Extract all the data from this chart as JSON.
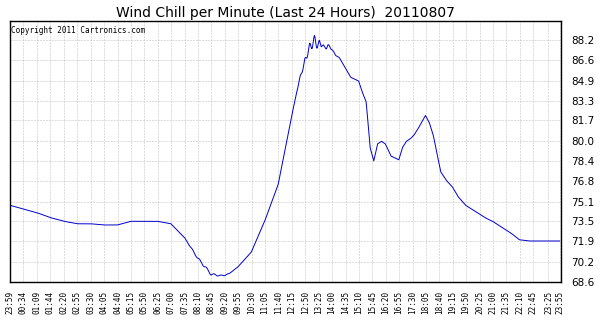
{
  "title": "Wind Chill per Minute (Last 24 Hours)  20110807",
  "copyright_text": "Copyright 2011 Cartronics.com",
  "line_color": "#0000cc",
  "background_color": "#ffffff",
  "grid_color": "#aaaaaa",
  "ylim": [
    68.6,
    89.8
  ],
  "yticks": [
    68.6,
    70.2,
    71.9,
    73.5,
    75.1,
    76.8,
    78.4,
    80.0,
    81.7,
    83.3,
    84.9,
    86.6,
    88.2
  ],
  "xlabel_fontsize": 5.5,
  "ylabel_fontsize": 7.5,
  "title_fontsize": 10,
  "x_labels": [
    "23:59",
    "00:34",
    "01:09",
    "01:44",
    "02:20",
    "02:55",
    "03:30",
    "04:05",
    "04:40",
    "05:15",
    "05:50",
    "06:25",
    "07:00",
    "07:35",
    "08:10",
    "08:45",
    "09:20",
    "09:55",
    "10:30",
    "11:05",
    "11:40",
    "12:15",
    "12:50",
    "13:25",
    "14:00",
    "14:35",
    "15:10",
    "15:45",
    "16:20",
    "16:55",
    "17:30",
    "18:05",
    "18:40",
    "19:15",
    "19:50",
    "20:25",
    "21:00",
    "21:35",
    "22:10",
    "22:45",
    "23:25",
    "23:55"
  ],
  "key_points": [
    [
      0.0,
      74.8
    ],
    [
      0.58,
      74.5
    ],
    [
      1.17,
      74.2
    ],
    [
      1.75,
      73.8
    ],
    [
      2.35,
      73.5
    ],
    [
      2.92,
      73.3
    ],
    [
      3.5,
      73.3
    ],
    [
      4.08,
      73.2
    ],
    [
      4.67,
      73.2
    ],
    [
      5.25,
      73.5
    ],
    [
      5.83,
      73.5
    ],
    [
      6.42,
      73.5
    ],
    [
      7.0,
      73.3
    ],
    [
      7.58,
      72.2
    ],
    [
      8.17,
      70.5
    ],
    [
      8.75,
      69.2
    ],
    [
      9.08,
      69.1
    ],
    [
      9.33,
      69.1
    ],
    [
      9.58,
      69.3
    ],
    [
      9.92,
      69.8
    ],
    [
      10.5,
      71.0
    ],
    [
      11.08,
      73.5
    ],
    [
      11.67,
      76.5
    ],
    [
      12.25,
      82.0
    ],
    [
      12.58,
      84.9
    ],
    [
      12.83,
      86.5
    ],
    [
      13.0,
      87.5
    ],
    [
      13.17,
      88.0
    ],
    [
      13.25,
      88.2
    ],
    [
      13.42,
      87.8
    ],
    [
      13.58,
      88.0
    ],
    [
      13.67,
      87.5
    ],
    [
      13.83,
      87.8
    ],
    [
      14.0,
      87.5
    ],
    [
      14.17,
      87.0
    ],
    [
      14.33,
      86.8
    ],
    [
      14.58,
      86.0
    ],
    [
      14.83,
      85.2
    ],
    [
      15.17,
      84.9
    ],
    [
      15.33,
      84.0
    ],
    [
      15.5,
      83.2
    ],
    [
      15.67,
      79.5
    ],
    [
      15.83,
      78.4
    ],
    [
      16.0,
      79.8
    ],
    [
      16.17,
      80.0
    ],
    [
      16.33,
      79.8
    ],
    [
      16.58,
      78.8
    ],
    [
      16.92,
      78.5
    ],
    [
      17.08,
      79.5
    ],
    [
      17.25,
      80.0
    ],
    [
      17.42,
      80.2
    ],
    [
      17.58,
      80.5
    ],
    [
      17.75,
      81.0
    ],
    [
      18.08,
      82.1
    ],
    [
      18.25,
      81.5
    ],
    [
      18.42,
      80.5
    ],
    [
      18.58,
      79.0
    ],
    [
      18.75,
      77.5
    ],
    [
      19.0,
      76.8
    ],
    [
      19.25,
      76.3
    ],
    [
      19.5,
      75.5
    ],
    [
      19.83,
      74.8
    ],
    [
      20.25,
      74.3
    ],
    [
      20.67,
      73.8
    ],
    [
      21.0,
      73.5
    ],
    [
      21.42,
      73.0
    ],
    [
      21.83,
      72.5
    ],
    [
      22.17,
      72.0
    ],
    [
      22.58,
      71.9
    ],
    [
      22.75,
      71.9
    ],
    [
      23.0,
      71.9
    ],
    [
      23.42,
      71.9
    ],
    [
      23.92,
      71.9
    ]
  ]
}
